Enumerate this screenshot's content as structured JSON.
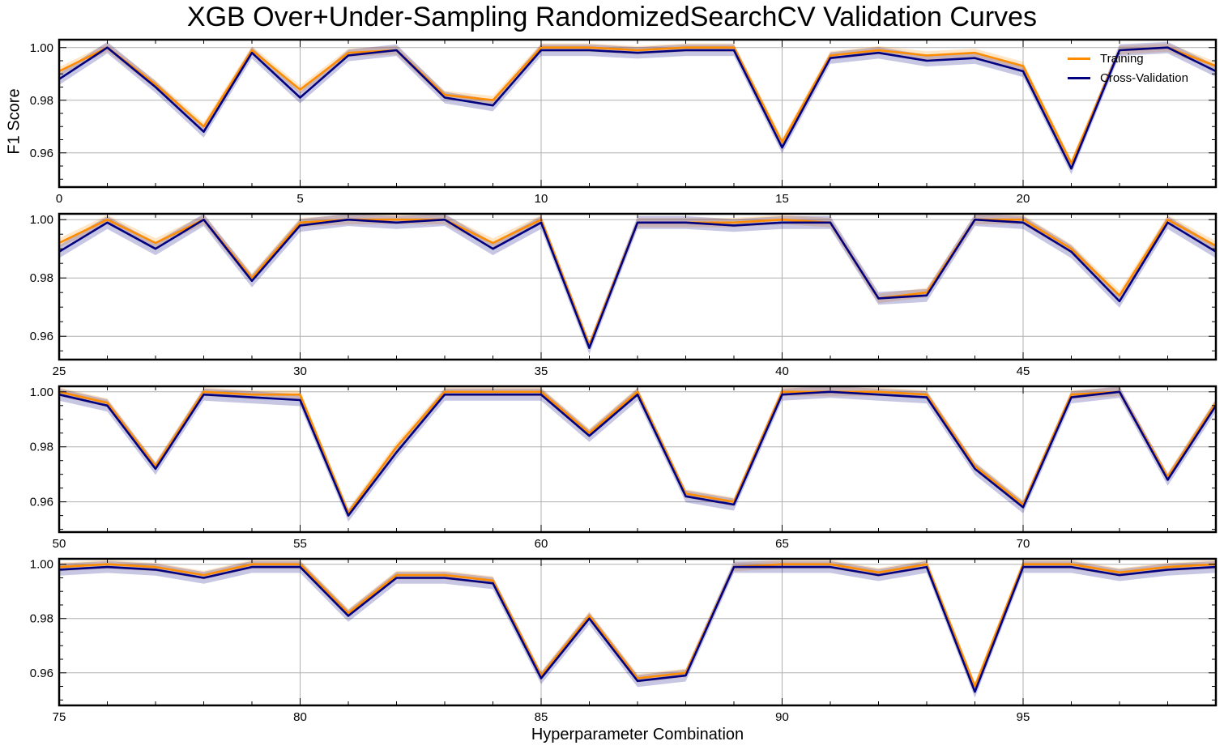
{
  "title": "XGB Over+Under-Sampling RandomizedSearchCV Validation Curves",
  "ylabel": "F1 Score",
  "xlabel": "Hyperparameter Combination",
  "legend": [
    {
      "name": "Training",
      "color": "#ff8c00"
    },
    {
      "name": "Cross-Validation",
      "color": "#000080"
    }
  ],
  "chart_data": {
    "type": "line",
    "legend_position": "top-right",
    "grid": true,
    "panels": [
      {
        "xlim": [
          0,
          24
        ],
        "xticks": [
          0,
          5,
          10,
          15,
          20
        ],
        "ylim": [
          0.947,
          1.003
        ],
        "yticks": [
          "0.96",
          "0.98",
          "1.00"
        ],
        "x": [
          0,
          1,
          2,
          3,
          4,
          5,
          6,
          7,
          8,
          9,
          10,
          11,
          12,
          13,
          14,
          15,
          16,
          17,
          18,
          19,
          20,
          21,
          22,
          23,
          24
        ],
        "train": [
          0.991,
          1.0,
          0.986,
          0.97,
          0.999,
          0.984,
          0.998,
          0.999,
          0.982,
          0.98,
          1.0,
          1.0,
          0.999,
          1.0,
          1.0,
          0.964,
          0.997,
          0.999,
          0.997,
          0.998,
          0.993,
          0.956,
          0.999,
          1.0,
          0.993
        ],
        "cv": [
          0.988,
          1.0,
          0.985,
          0.968,
          0.998,
          0.981,
          0.997,
          0.999,
          0.981,
          0.978,
          0.999,
          0.999,
          0.998,
          0.999,
          0.999,
          0.962,
          0.996,
          0.998,
          0.995,
          0.996,
          0.991,
          0.954,
          0.999,
          1.0,
          0.991
        ]
      },
      {
        "xlim": [
          25,
          49
        ],
        "xticks": [
          25,
          30,
          35,
          40,
          45
        ],
        "ylim": [
          0.952,
          1.002
        ],
        "yticks": [
          "0.96",
          "0.98",
          "1.00"
        ],
        "x": [
          25,
          26,
          27,
          28,
          29,
          30,
          31,
          32,
          33,
          34,
          35,
          36,
          37,
          38,
          39,
          40,
          41,
          42,
          43,
          44,
          45,
          46,
          47,
          48,
          49
        ],
        "train": [
          0.992,
          1.0,
          0.992,
          1.0,
          0.98,
          0.999,
          1.0,
          1.0,
          1.0,
          0.992,
          1.0,
          0.957,
          0.999,
          0.999,
          0.999,
          1.0,
          0.999,
          0.973,
          0.975,
          1.0,
          1.0,
          0.99,
          0.974,
          1.0,
          0.991
        ],
        "cv": [
          0.989,
          0.999,
          0.99,
          1.0,
          0.979,
          0.998,
          1.0,
          0.999,
          1.0,
          0.99,
          0.999,
          0.956,
          0.999,
          0.999,
          0.998,
          0.999,
          0.999,
          0.973,
          0.974,
          1.0,
          0.999,
          0.989,
          0.972,
          0.999,
          0.989
        ]
      },
      {
        "xlim": [
          50,
          74
        ],
        "xticks": [
          50,
          55,
          60,
          65,
          70
        ],
        "ylim": [
          0.949,
          1.002
        ],
        "yticks": [
          "0.96",
          "0.98",
          "1.00"
        ],
        "x": [
          50,
          51,
          52,
          53,
          54,
          55,
          56,
          57,
          58,
          59,
          60,
          61,
          62,
          63,
          64,
          65,
          66,
          67,
          68,
          69,
          70,
          71,
          72,
          73,
          74
        ],
        "train": [
          1.0,
          0.996,
          0.973,
          1.0,
          0.999,
          0.999,
          0.956,
          0.98,
          1.0,
          1.0,
          1.0,
          0.985,
          1.0,
          0.963,
          0.96,
          1.0,
          1.0,
          1.0,
          0.999,
          0.973,
          0.959,
          0.999,
          1.0,
          0.969,
          0.996
        ],
        "cv": [
          0.999,
          0.995,
          0.972,
          0.999,
          0.998,
          0.997,
          0.955,
          0.978,
          0.999,
          0.999,
          0.999,
          0.984,
          0.999,
          0.962,
          0.959,
          0.999,
          1.0,
          0.999,
          0.998,
          0.972,
          0.958,
          0.998,
          1.0,
          0.968,
          0.995
        ]
      },
      {
        "xlim": [
          75,
          99
        ],
        "xticks": [
          75,
          80,
          85,
          90,
          95
        ],
        "ylim": [
          0.948,
          1.002
        ],
        "yticks": [
          "0.96",
          "0.98",
          "1.00"
        ],
        "x": [
          75,
          76,
          77,
          78,
          79,
          80,
          81,
          82,
          83,
          84,
          85,
          86,
          87,
          88,
          89,
          90,
          91,
          92,
          93,
          94,
          95,
          96,
          97,
          98,
          99
        ],
        "train": [
          0.999,
          1.0,
          0.999,
          0.996,
          1.0,
          1.0,
          0.982,
          0.996,
          0.996,
          0.994,
          0.959,
          0.981,
          0.958,
          0.96,
          0.999,
          1.0,
          1.0,
          0.997,
          1.0,
          0.955,
          1.0,
          1.0,
          0.997,
          0.999,
          1.0
        ],
        "cv": [
          0.998,
          0.999,
          0.998,
          0.995,
          0.999,
          0.999,
          0.981,
          0.995,
          0.995,
          0.993,
          0.958,
          0.98,
          0.957,
          0.959,
          0.999,
          0.999,
          0.999,
          0.996,
          0.999,
          0.953,
          0.999,
          0.999,
          0.996,
          0.998,
          0.999
        ]
      }
    ]
  }
}
